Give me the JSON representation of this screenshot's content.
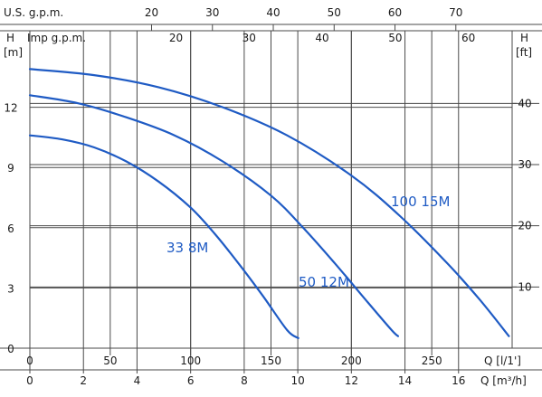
{
  "chart_data": {
    "type": "line",
    "colors": {
      "curve": "#1f5bc4",
      "grid": "#4a4a4a",
      "text": "#1a1a1a"
    },
    "axes": {
      "us_gpm": {
        "label": "U.S. g.p.m.",
        "ticks": [
          20,
          30,
          40,
          50,
          60,
          70
        ]
      },
      "imp_gpm": {
        "label": "Imp g.p.m.",
        "ticks": [
          20,
          30,
          40,
          50,
          60
        ]
      },
      "h_m": {
        "title": "H",
        "unit": "[m]",
        "ticks": [
          0,
          3,
          6,
          9,
          12
        ],
        "range": [
          0,
          15
        ]
      },
      "h_ft": {
        "title": "H",
        "unit": "[ft]",
        "ticks": [
          10,
          20,
          30,
          40
        ]
      },
      "q_lmin": {
        "label": "Q [l/1']",
        "ticks": [
          0,
          50,
          100,
          150,
          200,
          250
        ]
      },
      "q_m3h": {
        "label": "Q [m³/h]",
        "ticks": [
          0,
          2,
          4,
          6,
          8,
          10,
          12,
          14,
          16
        ]
      }
    },
    "x_range_lmin": [
      0,
      300
    ],
    "series": [
      {
        "name": "33 8M",
        "points": [
          [
            0,
            10.6
          ],
          [
            20,
            10.4
          ],
          [
            40,
            10.0
          ],
          [
            60,
            9.3
          ],
          [
            80,
            8.3
          ],
          [
            100,
            7.0
          ],
          [
            115,
            5.7
          ],
          [
            130,
            4.2
          ],
          [
            145,
            2.6
          ],
          [
            160,
            0.9
          ],
          [
            167,
            0.5
          ]
        ]
      },
      {
        "name": "50 12M",
        "points": [
          [
            0,
            12.6
          ],
          [
            30,
            12.2
          ],
          [
            60,
            11.5
          ],
          [
            90,
            10.6
          ],
          [
            120,
            9.3
          ],
          [
            150,
            7.6
          ],
          [
            170,
            6.0
          ],
          [
            190,
            4.2
          ],
          [
            210,
            2.3
          ],
          [
            225,
            0.9
          ],
          [
            229,
            0.6
          ]
        ]
      },
      {
        "name": "100 15M",
        "points": [
          [
            0,
            13.9
          ],
          [
            40,
            13.6
          ],
          [
            80,
            13.0
          ],
          [
            120,
            12.0
          ],
          [
            160,
            10.6
          ],
          [
            200,
            8.6
          ],
          [
            230,
            6.6
          ],
          [
            260,
            4.2
          ],
          [
            280,
            2.4
          ],
          [
            298,
            0.6
          ]
        ]
      }
    ]
  }
}
